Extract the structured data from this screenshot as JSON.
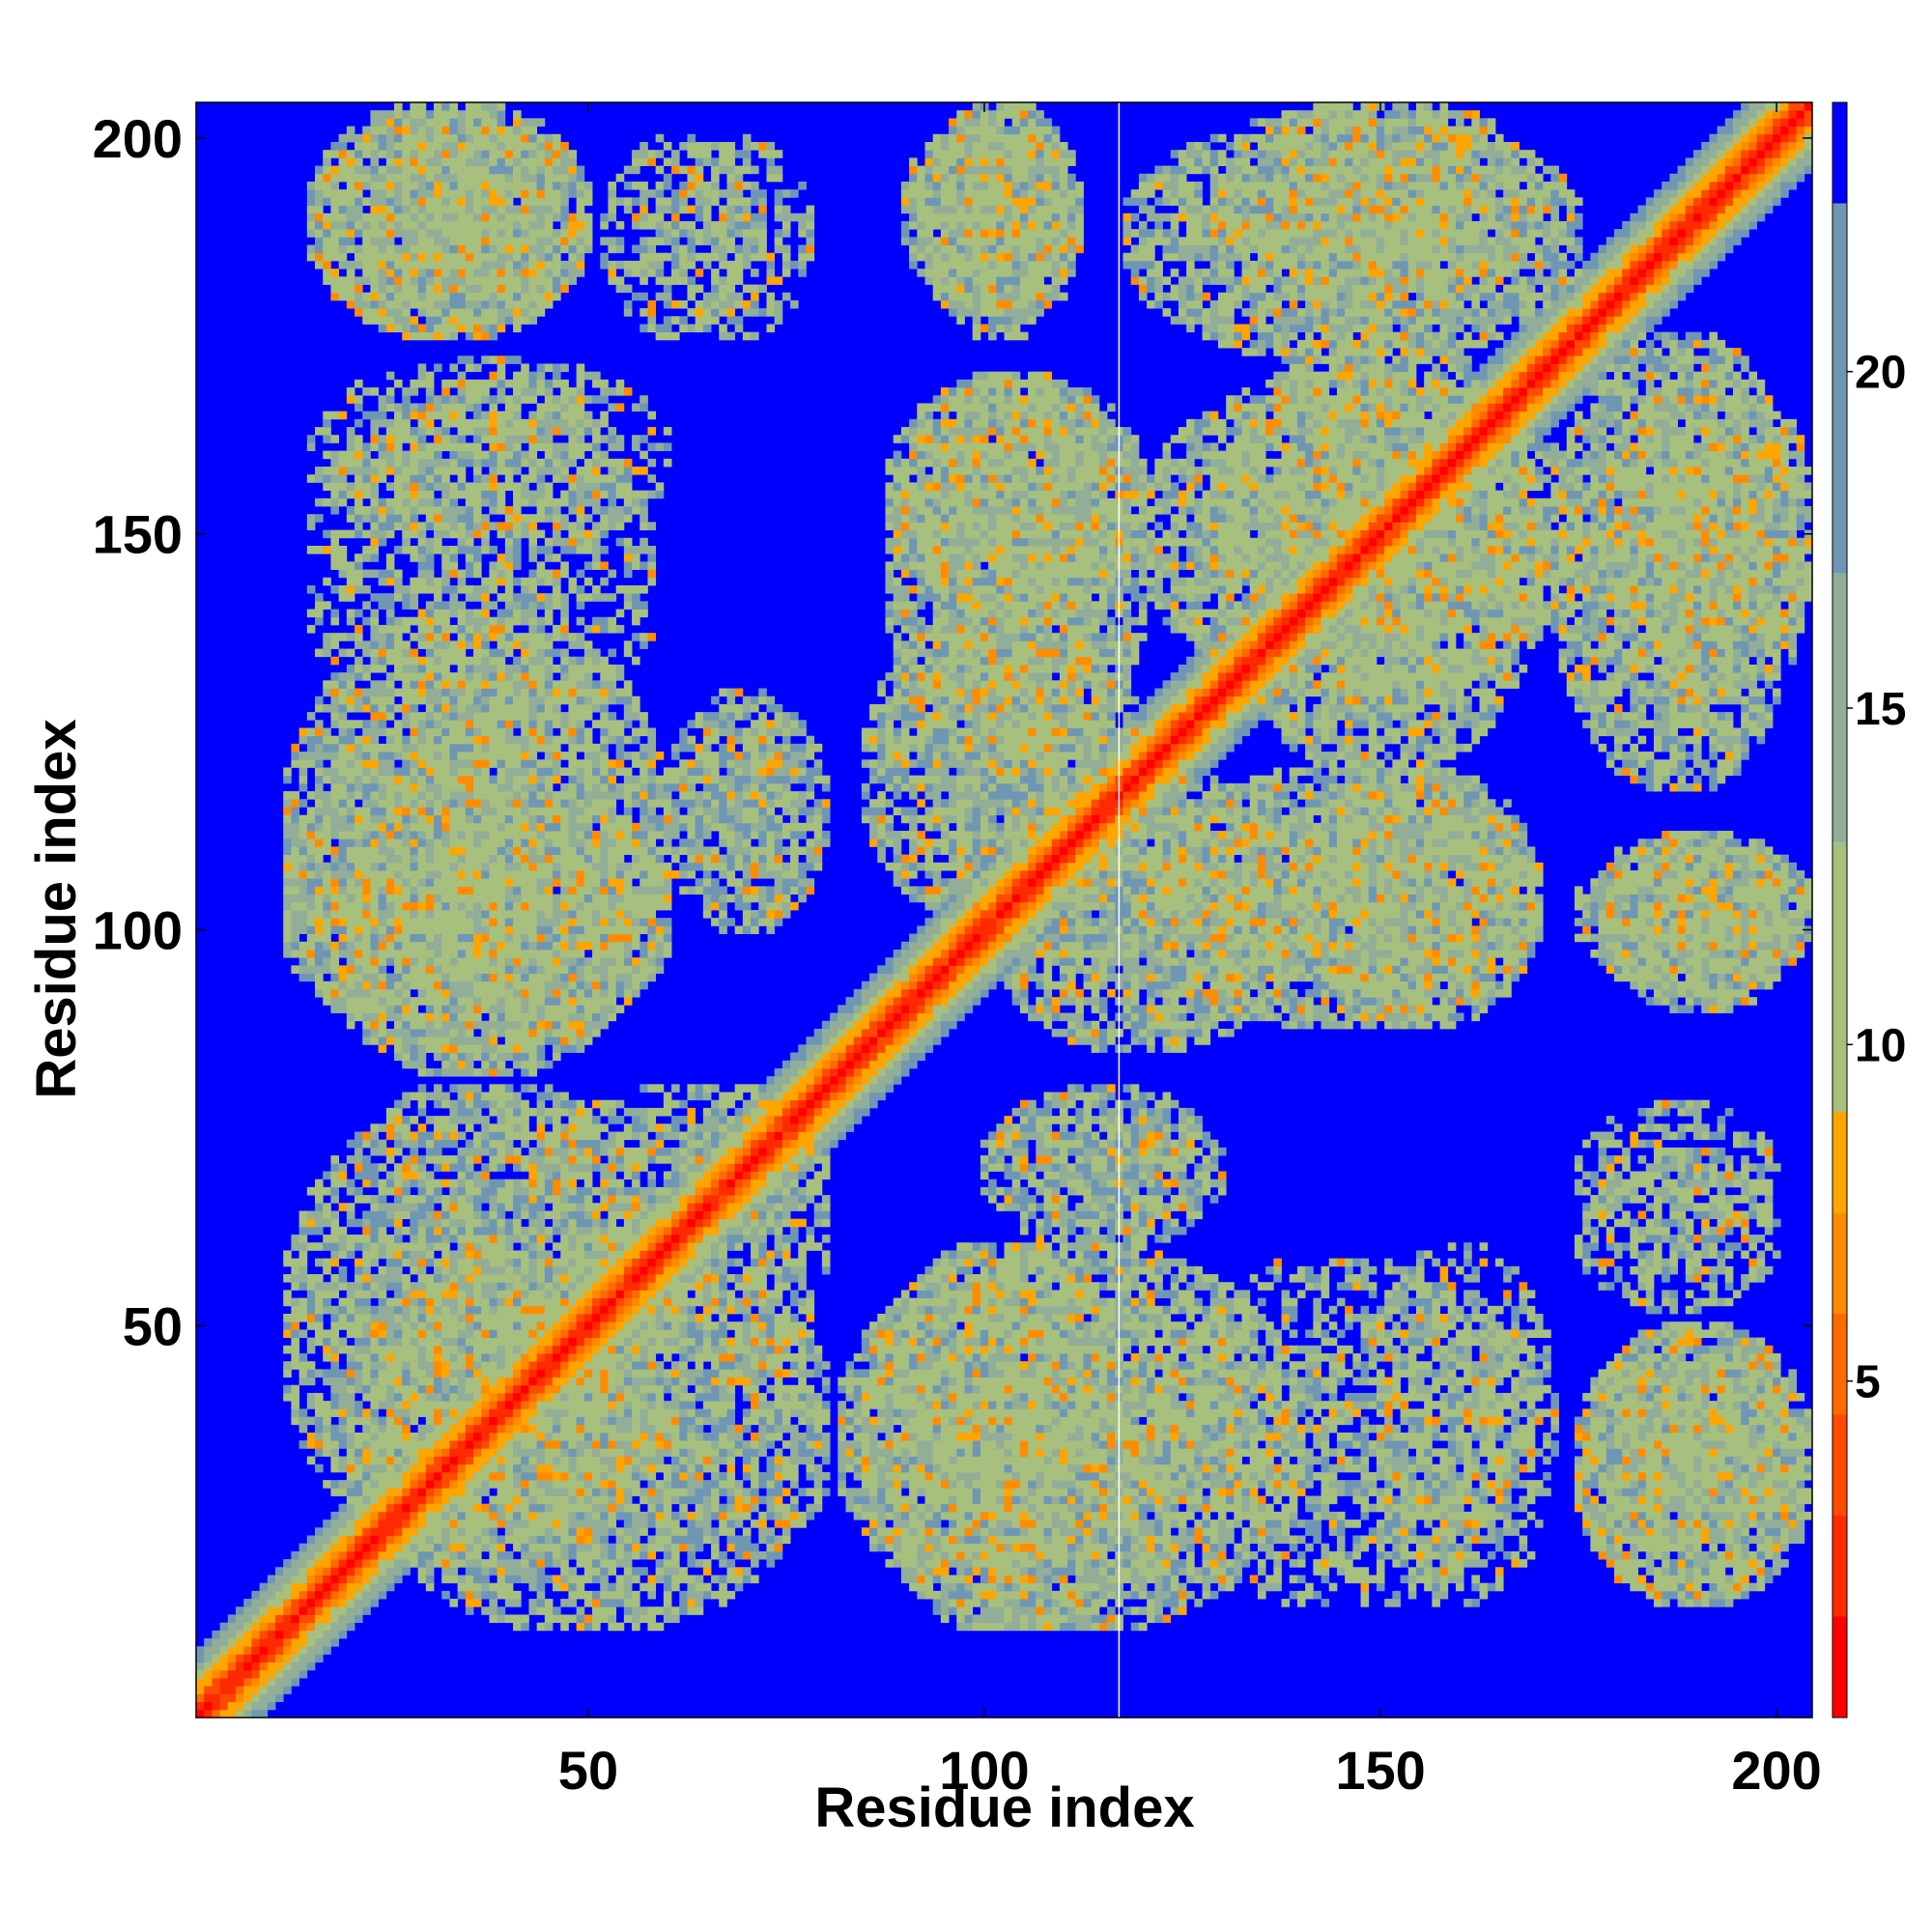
{
  "chart_data": {
    "type": "heatmap",
    "xlabel": "Residue index",
    "ylabel": "Residue index",
    "xlim": [
      1,
      204
    ],
    "ylim": [
      1,
      204
    ],
    "x_ticks": [
      50,
      100,
      150,
      200
    ],
    "y_ticks": [
      50,
      100,
      150,
      200
    ],
    "colorbar": {
      "range": [
        0,
        24
      ],
      "ticks": [
        5,
        10,
        15,
        20
      ],
      "bins": [
        {
          "from": 0,
          "to": 1.5,
          "color": "#ff0000"
        },
        {
          "from": 1.5,
          "to": 3,
          "color": "#ff2a00"
        },
        {
          "from": 3,
          "to": 4.5,
          "color": "#ff4a00"
        },
        {
          "from": 4.5,
          "to": 6,
          "color": "#ff6a00"
        },
        {
          "from": 6,
          "to": 7.5,
          "color": "#ff8c00"
        },
        {
          "from": 7.5,
          "to": 9,
          "color": "#ffa500"
        },
        {
          "from": 9,
          "to": 13,
          "color": "#a8c07e"
        },
        {
          "from": 13,
          "to": 17,
          "color": "#92ae98"
        },
        {
          "from": 17,
          "to": 22.5,
          "color": "#6f97b4"
        },
        {
          "from": 22.5,
          "to": 24,
          "color": "#0000ff"
        }
      ]
    },
    "matrix_symmetric": true,
    "diagonal_value": 0,
    "background_value": 24,
    "contact_regions": [
      {
        "x": [
          15,
          50
        ],
        "y": [
          175,
          203
        ],
        "level": "medium"
      },
      {
        "x": [
          52,
          70
        ],
        "y": [
          175,
          200
        ],
        "level": "sparse"
      },
      {
        "x": [
          90,
          112
        ],
        "y": [
          178,
          203
        ],
        "level": "medium"
      },
      {
        "x": [
          118,
          175
        ],
        "y": [
          172,
          203
        ],
        "level": "medium"
      },
      {
        "x": [
          15,
          60
        ],
        "y": [
          148,
          172
        ],
        "level": "sparse"
      },
      {
        "x": [
          88,
          120
        ],
        "y": [
          140,
          170
        ],
        "level": "medium"
      },
      {
        "x": [
          120,
          175
        ],
        "y": [
          130,
          170
        ],
        "level": "medium"
      },
      {
        "x": [
          178,
          205
        ],
        "y": [
          130,
          170
        ],
        "level": "medium"
      },
      {
        "x": [
          12,
          60
        ],
        "y": [
          82,
          140
        ],
        "level": "medium"
      },
      {
        "x": [
          60,
          80
        ],
        "y": [
          100,
          130
        ],
        "level": "medium"
      },
      {
        "x": [
          85,
          120
        ],
        "y": [
          100,
          140
        ],
        "level": "medium"
      },
      {
        "x": [
          120,
          170
        ],
        "y": [
          88,
          120
        ],
        "level": "medium"
      },
      {
        "x": [
          175,
          205
        ],
        "y": [
          92,
          112
        ],
        "level": "medium"
      },
      {
        "x": [
          12,
          62
        ],
        "y": [
          20,
          80
        ],
        "level": "medium"
      },
      {
        "x": [
          62,
          80
        ],
        "y": [
          45,
          80
        ],
        "level": "sparse"
      },
      {
        "x": [
          85,
          120
        ],
        "y": [
          12,
          60
        ],
        "level": "medium"
      },
      {
        "x": [
          120,
          170
        ],
        "y": [
          15,
          58
        ],
        "level": "sparse"
      },
      {
        "x": [
          175,
          205
        ],
        "y": [
          15,
          50
        ],
        "level": "medium"
      },
      {
        "x": [
          175,
          200
        ],
        "y": [
          60,
          78
        ],
        "level": "sparse"
      }
    ]
  }
}
